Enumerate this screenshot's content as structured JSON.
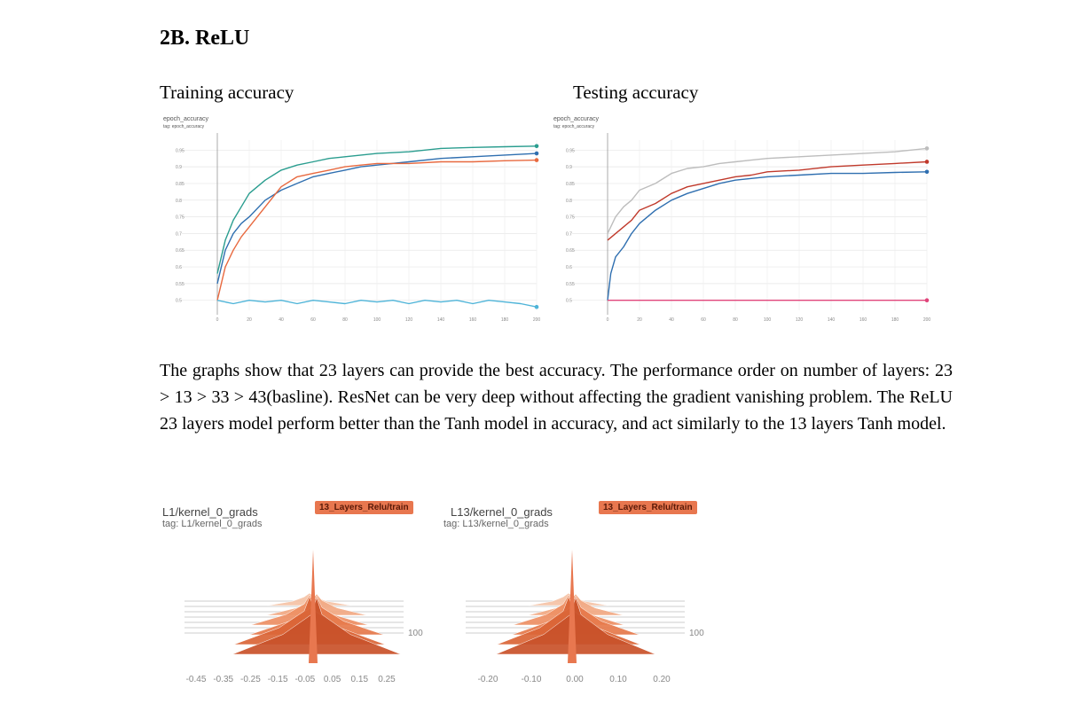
{
  "heading": "2B. ReLU",
  "captions": {
    "train": "Training accuracy",
    "test": "Testing accuracy"
  },
  "paragraph": "The graphs show that 23 layers can provide the best accuracy. The performance order on number of layers: 23 > 13 > 33 > 43(basline). ResNet can be very deep without affecting the gradient vanishing problem. The ReLU 23 layers model perform better than the Tanh model in accuracy, and act similarly to the 13 layers Tanh model.",
  "chart_data": [
    {
      "type": "line",
      "title": "epoch_accuracy",
      "subtitle": "tag: epoch_accuracy",
      "xlim": [
        0,
        200
      ],
      "ylim": [
        0.47,
        0.98
      ],
      "xticks": [
        0,
        20,
        40,
        60,
        80,
        100,
        120,
        140,
        160,
        180,
        200
      ],
      "yticks": [
        0.5,
        0.55,
        0.6,
        0.65,
        0.7,
        0.75,
        0.8,
        0.85,
        0.9,
        0.95
      ],
      "grid": true,
      "series": [
        {
          "color": "#2a9d8f",
          "x": [
            0,
            5,
            10,
            15,
            20,
            30,
            40,
            50,
            60,
            70,
            80,
            90,
            100,
            120,
            140,
            160,
            180,
            200
          ],
          "y": [
            0.58,
            0.68,
            0.74,
            0.78,
            0.82,
            0.86,
            0.89,
            0.905,
            0.915,
            0.925,
            0.93,
            0.935,
            0.94,
            0.945,
            0.955,
            0.958,
            0.96,
            0.962
          ]
        },
        {
          "color": "#2f6fb0",
          "x": [
            0,
            5,
            10,
            15,
            20,
            30,
            40,
            50,
            60,
            70,
            80,
            90,
            100,
            120,
            140,
            160,
            180,
            200
          ],
          "y": [
            0.55,
            0.65,
            0.7,
            0.73,
            0.75,
            0.8,
            0.83,
            0.85,
            0.87,
            0.88,
            0.89,
            0.9,
            0.905,
            0.915,
            0.925,
            0.93,
            0.935,
            0.94
          ]
        },
        {
          "color": "#e8693f",
          "x": [
            0,
            5,
            10,
            15,
            20,
            30,
            40,
            50,
            60,
            70,
            80,
            90,
            100,
            120,
            140,
            160,
            180,
            200
          ],
          "y": [
            0.5,
            0.6,
            0.65,
            0.69,
            0.72,
            0.78,
            0.84,
            0.87,
            0.88,
            0.89,
            0.9,
            0.905,
            0.91,
            0.91,
            0.915,
            0.915,
            0.918,
            0.92
          ]
        },
        {
          "color": "#4fb4d8",
          "x": [
            0,
            10,
            20,
            30,
            40,
            50,
            60,
            70,
            80,
            90,
            100,
            110,
            120,
            130,
            140,
            150,
            160,
            170,
            180,
            190,
            200
          ],
          "y": [
            0.5,
            0.49,
            0.5,
            0.495,
            0.5,
            0.49,
            0.5,
            0.495,
            0.49,
            0.5,
            0.495,
            0.5,
            0.49,
            0.5,
            0.495,
            0.5,
            0.49,
            0.5,
            0.495,
            0.49,
            0.48
          ]
        }
      ]
    },
    {
      "type": "line",
      "title": "epoch_accuracy",
      "subtitle": "tag: epoch_accuracy",
      "xlim": [
        0,
        200
      ],
      "ylim": [
        0.47,
        0.98
      ],
      "xticks": [
        0,
        20,
        40,
        60,
        80,
        100,
        120,
        140,
        160,
        180,
        200
      ],
      "yticks": [
        0.5,
        0.55,
        0.6,
        0.65,
        0.7,
        0.75,
        0.8,
        0.85,
        0.9,
        0.95
      ],
      "grid": true,
      "series": [
        {
          "color": "#bdbdbd",
          "x": [
            0,
            5,
            10,
            15,
            20,
            30,
            40,
            50,
            60,
            70,
            80,
            90,
            100,
            120,
            140,
            160,
            180,
            200
          ],
          "y": [
            0.7,
            0.75,
            0.78,
            0.8,
            0.83,
            0.85,
            0.88,
            0.895,
            0.9,
            0.91,
            0.915,
            0.92,
            0.925,
            0.93,
            0.935,
            0.94,
            0.945,
            0.955
          ]
        },
        {
          "color": "#c0392b",
          "x": [
            0,
            5,
            10,
            15,
            20,
            30,
            40,
            50,
            60,
            70,
            80,
            90,
            100,
            120,
            140,
            160,
            180,
            200
          ],
          "y": [
            0.68,
            0.7,
            0.72,
            0.74,
            0.77,
            0.79,
            0.82,
            0.84,
            0.85,
            0.86,
            0.87,
            0.875,
            0.885,
            0.89,
            0.9,
            0.905,
            0.91,
            0.915
          ]
        },
        {
          "color": "#2f6fb0",
          "x": [
            0,
            2,
            5,
            10,
            15,
            20,
            30,
            40,
            50,
            60,
            70,
            80,
            90,
            100,
            120,
            140,
            160,
            180,
            200
          ],
          "y": [
            0.5,
            0.58,
            0.63,
            0.66,
            0.7,
            0.73,
            0.77,
            0.8,
            0.82,
            0.835,
            0.85,
            0.86,
            0.865,
            0.87,
            0.875,
            0.88,
            0.88,
            0.883,
            0.885
          ]
        },
        {
          "color": "#e0447a",
          "x": [
            0,
            200
          ],
          "y": [
            0.5,
            0.5
          ]
        }
      ]
    }
  ],
  "histograms": [
    {
      "title": "L1/kernel_0_grads",
      "tag": "tag: L1/kernel_0_grads",
      "badge": "13_Layers_Relu/train",
      "step_label": "100",
      "xticks": [
        "-0.45",
        "-0.35",
        "-0.25",
        "-0.15",
        "-0.05",
        "0.05",
        "0.15",
        "0.25"
      ]
    },
    {
      "title": "L13/kernel_0_grads",
      "tag": "tag: L13/kernel_0_grads",
      "badge": "13_Layers_Relu/train",
      "step_label": "100",
      "xticks": [
        "-0.20",
        "-0.10",
        "0.00",
        "0.10",
        "0.20"
      ]
    }
  ]
}
